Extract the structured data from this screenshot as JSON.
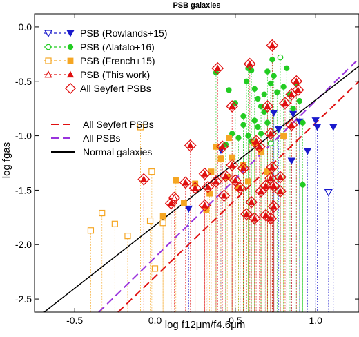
{
  "chart_data": {
    "type": "scatter",
    "title": "PSB galaxies",
    "xlabel": "log f12μm/f4.6μm",
    "ylabel": "log fgas",
    "xlim": [
      -0.75,
      1.27
    ],
    "ylim": [
      -2.62,
      0.12
    ],
    "xticks": [
      "-0.5",
      "0.0",
      "0.5",
      "1.0"
    ],
    "xtick_values": [
      -0.5,
      0.0,
      0.5,
      1.0
    ],
    "yticks": [
      "0.0",
      "-0.5",
      "-1.0",
      "-1.5",
      "-2.0",
      "-2.5"
    ],
    "ytick_values": [
      0.0,
      -0.5,
      -1.0,
      -1.5,
      -2.0,
      -2.5
    ],
    "legend_markers": [
      {
        "label": "PSB (Rowlands+15)",
        "color": "#1a1acc",
        "marker": "triangle-down"
      },
      {
        "label": "PSB (Alatalo+16)",
        "color": "#22cc22",
        "marker": "circle"
      },
      {
        "label": "PSB (French+15)",
        "color": "#f5a623",
        "marker": "square"
      },
      {
        "label": "PSB (This work)",
        "color": "#e01010",
        "marker": "triangle-up"
      },
      {
        "label": "All Seyfert PSBs",
        "color": "#e01010",
        "marker": "diamond"
      }
    ],
    "legend_lines": [
      {
        "label": "All Seyfert PSBs",
        "color": "#e01010",
        "style": "dashed"
      },
      {
        "label": "All PSBs",
        "color": "#9933dd",
        "style": "dashed"
      },
      {
        "label": "Normal galaxies",
        "color": "#000000",
        "style": "solid"
      }
    ],
    "fit_lines": [
      {
        "name": "All Seyfert PSBs",
        "color": "#e01010",
        "x": [
          -0.23,
          1.27
        ],
        "y": [
          -2.62,
          -0.5
        ]
      },
      {
        "name": "All PSBs",
        "color": "#9933dd",
        "x": [
          -0.35,
          1.27
        ],
        "y": [
          -2.62,
          -0.29
        ]
      },
      {
        "name": "Normal galaxies",
        "color": "#000000",
        "x": [
          -0.69,
          1.27
        ],
        "y": [
          -2.62,
          -0.36
        ]
      }
    ],
    "series": [
      {
        "name": "PSB (Rowlands+15)",
        "color": "#1a1acc",
        "marker": "triangle-down",
        "points": [
          {
            "x": 0.41,
            "y": -1.13
          },
          {
            "x": 0.21,
            "y": -1.67
          },
          {
            "x": 0.77,
            "y": -0.94
          },
          {
            "x": 0.74,
            "y": -0.79
          },
          {
            "x": 0.9,
            "y": -0.87
          },
          {
            "x": 0.86,
            "y": -0.8
          },
          {
            "x": 0.95,
            "y": -1.14
          },
          {
            "x": 0.85,
            "y": -1.23
          },
          {
            "x": 1.01,
            "y": -0.92
          },
          {
            "x": 1.0,
            "y": -0.86
          },
          {
            "x": 1.11,
            "y": -0.92
          },
          {
            "x": 1.08,
            "y": -1.52,
            "open": true,
            "upper_limit": true
          }
        ]
      },
      {
        "name": "PSB (Alatalo+16)",
        "color": "#22cc22",
        "marker": "circle",
        "points": [
          {
            "x": 0.38,
            "y": -0.42
          },
          {
            "x": 0.46,
            "y": -0.58
          },
          {
            "x": 0.5,
            "y": -0.7
          },
          {
            "x": 0.55,
            "y": -0.82
          },
          {
            "x": 0.58,
            "y": -0.38
          },
          {
            "x": 0.57,
            "y": -0.5
          },
          {
            "x": 0.6,
            "y": -0.4
          },
          {
            "x": 0.62,
            "y": -0.57
          },
          {
            "x": 0.64,
            "y": -0.66
          },
          {
            "x": 0.66,
            "y": -0.73
          },
          {
            "x": 0.68,
            "y": -0.62
          },
          {
            "x": 0.7,
            "y": -0.41
          },
          {
            "x": 0.72,
            "y": -0.52
          },
          {
            "x": 0.73,
            "y": -0.3
          },
          {
            "x": 0.74,
            "y": -0.45
          },
          {
            "x": 0.76,
            "y": -0.6
          },
          {
            "x": 0.78,
            "y": -0.28,
            "open": true
          },
          {
            "x": 0.8,
            "y": -0.55
          },
          {
            "x": 0.82,
            "y": -0.38
          },
          {
            "x": 0.84,
            "y": -0.62
          },
          {
            "x": 0.86,
            "y": -0.75
          },
          {
            "x": 0.88,
            "y": -0.52
          },
          {
            "x": 0.9,
            "y": -0.68
          },
          {
            "x": 0.92,
            "y": -0.88
          },
          {
            "x": 0.62,
            "y": -0.86
          },
          {
            "x": 0.66,
            "y": -0.98
          },
          {
            "x": 0.7,
            "y": -0.88
          },
          {
            "x": 0.72,
            "y": -1.07,
            "open": true
          },
          {
            "x": 0.48,
            "y": -0.98
          },
          {
            "x": 0.55,
            "y": -0.9
          },
          {
            "x": 0.52,
            "y": -1.02
          },
          {
            "x": 0.58,
            "y": -1.0
          },
          {
            "x": 0.64,
            "y": -0.92
          },
          {
            "x": 0.68,
            "y": -0.78
          },
          {
            "x": 0.92,
            "y": -1.45
          },
          {
            "x": 0.44,
            "y": -1.08
          },
          {
            "x": 0.6,
            "y": -1.05
          }
        ]
      },
      {
        "name": "PSB (French+15)",
        "color": "#f5a623",
        "marker": "square",
        "points": [
          {
            "x": -0.4,
            "y": -1.87,
            "open": true
          },
          {
            "x": -0.33,
            "y": -1.71,
            "open": true
          },
          {
            "x": -0.25,
            "y": -1.81,
            "open": true
          },
          {
            "x": -0.17,
            "y": -1.92,
            "open": true
          },
          {
            "x": -0.09,
            "y": -0.92,
            "open": true
          },
          {
            "x": -0.02,
            "y": -1.33,
            "open": true
          },
          {
            "x": -0.03,
            "y": -1.78,
            "open": true
          },
          {
            "x": 0.0,
            "y": -2.22,
            "open": true
          },
          {
            "x": 0.05,
            "y": -1.8,
            "open": true
          },
          {
            "x": 0.05,
            "y": -1.74
          },
          {
            "x": 0.13,
            "y": -1.41
          },
          {
            "x": 0.18,
            "y": -1.62
          },
          {
            "x": 0.25,
            "y": -1.44
          },
          {
            "x": 0.32,
            "y": -1.68
          },
          {
            "x": 0.35,
            "y": -1.33
          },
          {
            "x": 0.38,
            "y": -1.1
          },
          {
            "x": 0.41,
            "y": -1.21
          },
          {
            "x": 0.45,
            "y": -1.38
          },
          {
            "x": 0.48,
            "y": -1.2
          },
          {
            "x": 0.52,
            "y": -1.48
          },
          {
            "x": 0.55,
            "y": -1.27
          },
          {
            "x": 0.58,
            "y": -1.42
          },
          {
            "x": 0.62,
            "y": -1.07
          },
          {
            "x": 0.66,
            "y": -1.15
          },
          {
            "x": 0.7,
            "y": -1.33
          },
          {
            "x": 0.8,
            "y": -1.0
          },
          {
            "x": 0.46,
            "y": -1.02
          },
          {
            "x": 0.34,
            "y": -1.53
          }
        ]
      },
      {
        "name": "PSB (This work)",
        "color": "#e01010",
        "marker": "triangle-up",
        "seyfert": true,
        "points": [
          {
            "x": -0.07,
            "y": -1.4
          },
          {
            "x": 0.1,
            "y": -1.62
          },
          {
            "x": 0.12,
            "y": -1.57,
            "open": true
          },
          {
            "x": 0.22,
            "y": -1.09
          },
          {
            "x": 0.19,
            "y": -1.43
          },
          {
            "x": 0.25,
            "y": -1.48
          },
          {
            "x": 0.31,
            "y": -1.35
          },
          {
            "x": 0.31,
            "y": -1.64
          },
          {
            "x": 0.33,
            "y": -1.47
          },
          {
            "x": 0.38,
            "y": -1.42
          },
          {
            "x": 0.42,
            "y": -1.1
          },
          {
            "x": 0.44,
            "y": -1.37
          },
          {
            "x": 0.43,
            "y": -1.55
          },
          {
            "x": 0.48,
            "y": -1.27
          },
          {
            "x": 0.5,
            "y": -1.41
          },
          {
            "x": 0.55,
            "y": -1.3
          },
          {
            "x": 0.53,
            "y": -1.48
          },
          {
            "x": 0.57,
            "y": -1.72
          },
          {
            "x": 0.6,
            "y": -1.61
          },
          {
            "x": 0.62,
            "y": -1.76
          },
          {
            "x": 0.66,
            "y": -1.51
          },
          {
            "x": 0.69,
            "y": -1.73
          },
          {
            "x": 0.72,
            "y": -1.76
          },
          {
            "x": 0.74,
            "y": -1.65
          },
          {
            "x": 0.69,
            "y": -1.46
          },
          {
            "x": 0.74,
            "y": -1.46
          },
          {
            "x": 0.78,
            "y": -1.51
          },
          {
            "x": 0.73,
            "y": -1.29
          },
          {
            "x": 0.72,
            "y": -1.39
          },
          {
            "x": 0.78,
            "y": -1.38
          },
          {
            "x": 0.65,
            "y": -1.1
          },
          {
            "x": 0.72,
            "y": -0.98
          },
          {
            "x": 0.85,
            "y": -0.62
          },
          {
            "x": 0.88,
            "y": -0.5
          },
          {
            "x": 0.89,
            "y": -0.58
          },
          {
            "x": 0.7,
            "y": -0.73
          },
          {
            "x": 0.73,
            "y": -0.17
          },
          {
            "x": 0.59,
            "y": -0.34
          },
          {
            "x": 0.39,
            "y": -0.38
          },
          {
            "x": 0.48,
            "y": -0.73
          },
          {
            "x": 0.81,
            "y": -0.7
          },
          {
            "x": 0.85,
            "y": -0.9
          },
          {
            "x": 0.63,
            "y": -1.05
          }
        ]
      }
    ]
  }
}
